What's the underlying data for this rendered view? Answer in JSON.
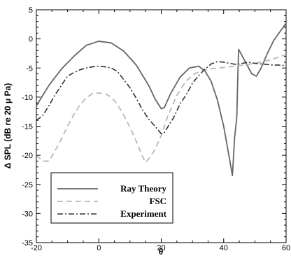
{
  "chart_data": {
    "type": "line",
    "title": "",
    "xlabel": "θ",
    "ylabel": "Δ SPL (dB re 20 μ Pa)",
    "xlim": [
      -20,
      60
    ],
    "ylim": [
      -35,
      5
    ],
    "xticks": [
      -20,
      0,
      20,
      40,
      60
    ],
    "yticks": [
      5,
      0,
      -5,
      -10,
      -15,
      -20,
      -25,
      -30,
      -35
    ],
    "grid": false,
    "legend_position": "bottom-left",
    "series": [
      {
        "name": "Ray Theory",
        "color": "#666666",
        "dash": "solid",
        "x": [
          -20,
          -16,
          -12,
          -8,
          -4,
          0,
          4,
          8,
          12,
          16,
          18,
          20,
          21,
          23,
          26,
          29,
          32,
          34,
          36,
          38,
          40,
          41,
          42,
          42.8,
          43.5,
          44.2,
          44.6,
          44.8,
          47,
          49,
          50.5,
          52,
          54,
          56,
          58,
          60
        ],
        "y": [
          -11.5,
          -8,
          -5.2,
          -3,
          -1.1,
          -0.4,
          -0.7,
          -2.1,
          -4.5,
          -8,
          -10.3,
          -12,
          -11.8,
          -9.4,
          -6.6,
          -5,
          -4.7,
          -5.5,
          -7.3,
          -10.5,
          -15,
          -18,
          -21,
          -23.5,
          -17,
          -13.5,
          -5,
          -1.8,
          -4,
          -6,
          -6.4,
          -5,
          -2.5,
          -0.3,
          1.2,
          2.7
        ]
      },
      {
        "name": "FSC",
        "color": "#b8b8b8",
        "dash": "dashed",
        "x": [
          -20,
          -18,
          -16,
          -14,
          -12,
          -10,
          -8,
          -6,
          -4,
          -2,
          0,
          2,
          4,
          6,
          8,
          10,
          12,
          14,
          15,
          16,
          18,
          20,
          22,
          25,
          28,
          31,
          35,
          40,
          45,
          50,
          55,
          60
        ],
        "y": [
          -20,
          -21,
          -21,
          -19.2,
          -17.2,
          -15,
          -13,
          -11.3,
          -10.1,
          -9.4,
          -9.3,
          -9.4,
          -10,
          -11.3,
          -13.1,
          -15.2,
          -17.6,
          -20.2,
          -21.2,
          -20.6,
          -19,
          -16.6,
          -13.4,
          -9.7,
          -7.2,
          -5.9,
          -5.2,
          -4.9,
          -4.6,
          -4.2,
          -3.6,
          -2.7
        ]
      },
      {
        "name": "Experiment",
        "color": "#333333",
        "dash": "dashdot",
        "x": [
          -20,
          -18,
          -16,
          -14,
          -12,
          -10,
          -8,
          -6,
          -4,
          -2,
          0,
          2,
          4,
          6,
          8,
          10,
          12,
          14,
          16,
          18,
          20,
          21,
          22,
          24,
          26,
          28,
          30,
          32,
          34,
          36,
          38,
          40,
          42,
          44,
          46,
          48,
          50,
          52,
          54,
          56,
          58,
          60
        ],
        "y": [
          -14,
          -13.2,
          -11.5,
          -9.6,
          -8,
          -6.4,
          -5.8,
          -5.3,
          -5,
          -4.8,
          -4.7,
          -4.8,
          -5,
          -5.6,
          -7,
          -8.4,
          -10.2,
          -12.2,
          -13.8,
          -15,
          -16.3,
          -16.1,
          -15.2,
          -13.5,
          -11.2,
          -9.6,
          -7.6,
          -6.3,
          -5.2,
          -4.3,
          -3.9,
          -4,
          -4.2,
          -4.4,
          -4.2,
          -4,
          -4.2,
          -4.3,
          -4.4,
          -4.5,
          -4.5,
          -4.6
        ]
      }
    ]
  }
}
